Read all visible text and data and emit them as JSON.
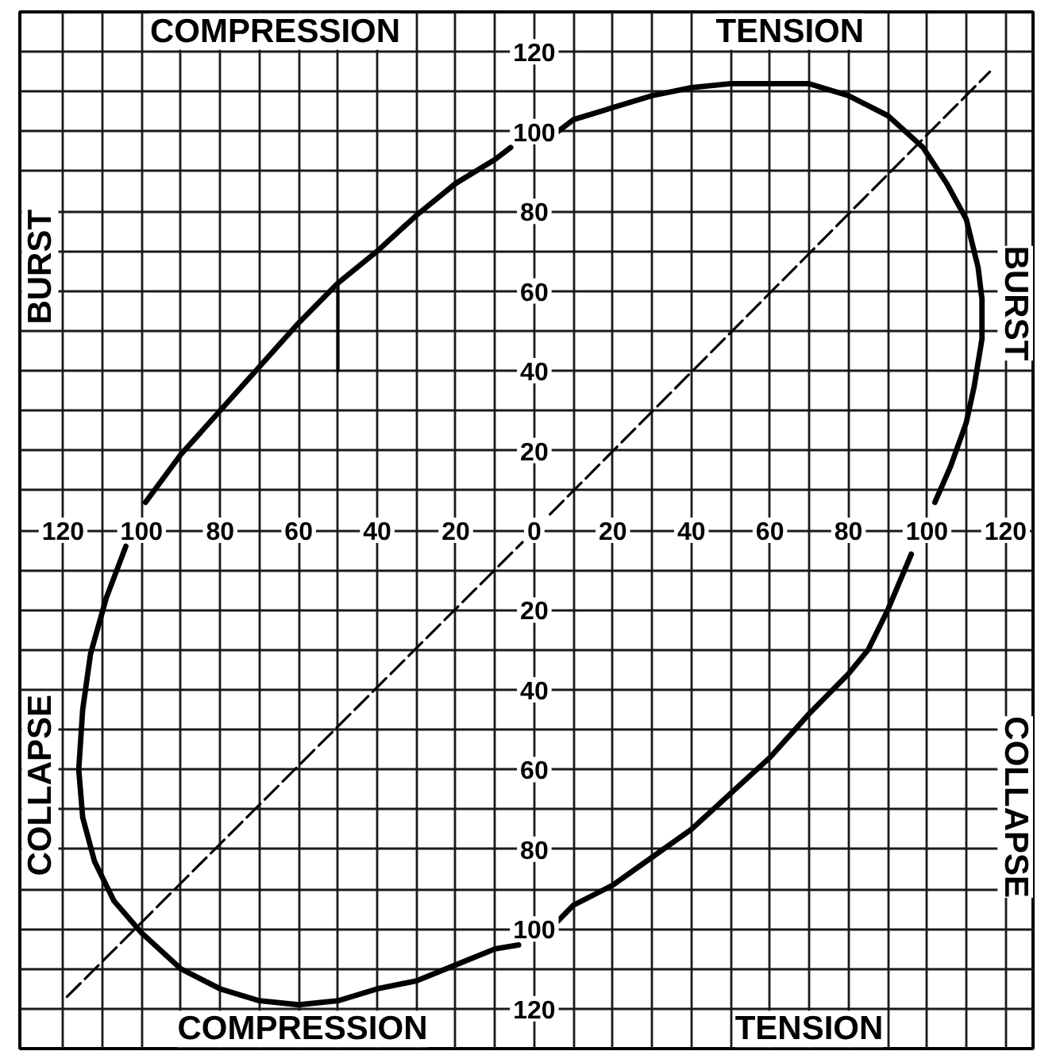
{
  "chart_data": {
    "type": "line",
    "xlim": [
      -131,
      127
    ],
    "ylim": [
      -130,
      130
    ],
    "grid": true,
    "xticks": [
      {
        "value": -120,
        "label": "120"
      },
      {
        "value": -110,
        "label": null
      },
      {
        "value": -100,
        "label": "100"
      },
      {
        "value": -90,
        "label": null
      },
      {
        "value": -80,
        "label": "80"
      },
      {
        "value": -70,
        "label": null
      },
      {
        "value": -60,
        "label": "60"
      },
      {
        "value": -50,
        "label": null
      },
      {
        "value": -40,
        "label": "40"
      },
      {
        "value": -30,
        "label": null
      },
      {
        "value": -20,
        "label": "20"
      },
      {
        "value": -10,
        "label": null
      },
      0,
      {
        "value": 10,
        "label": null
      },
      20,
      {
        "value": 30,
        "label": null
      },
      40,
      {
        "value": 50,
        "label": null
      },
      60,
      {
        "value": 70,
        "label": null
      },
      80,
      {
        "value": 90,
        "label": null
      },
      100,
      {
        "value": 110,
        "label": null
      },
      120
    ],
    "yticks": [
      {
        "value": -120,
        "label": "120"
      },
      {
        "value": -110,
        "label": null
      },
      {
        "value": -100,
        "label": "100"
      },
      {
        "value": -90,
        "label": null
      },
      {
        "value": -80,
        "label": "80"
      },
      {
        "value": -70,
        "label": null
      },
      {
        "value": -60,
        "label": "60"
      },
      {
        "value": -50,
        "label": null
      },
      {
        "value": -40,
        "label": "40"
      },
      {
        "value": -30,
        "label": null
      },
      {
        "value": -20,
        "label": "20"
      },
      {
        "value": -10,
        "label": null
      },
      {
        "value": 0,
        "label": null
      },
      {
        "value": 10,
        "label": null
      },
      20,
      {
        "value": 30,
        "label": null
      },
      40,
      {
        "value": 50,
        "label": null
      },
      60,
      {
        "value": 70,
        "label": null
      },
      80,
      {
        "value": 90,
        "label": null
      },
      100,
      {
        "value": 110,
        "label": null
      },
      120
    ],
    "annotations": [
      "COMPRESSION",
      "TENSION",
      "BURST",
      "BURST",
      "COLLAPSE",
      "COLLAPSE",
      "COMPRESSION",
      "TENSION"
    ],
    "series": [
      {
        "color": "#000000",
        "x": [
          6,
          10,
          20,
          30,
          40,
          50,
          60,
          70,
          80,
          90,
          99,
          105,
          110,
          113,
          114,
          114,
          112,
          110,
          106,
          102,
          100,
          96,
          90,
          85,
          80,
          70,
          60,
          50,
          40,
          30,
          20,
          10,
          6,
          1,
          -4,
          -10,
          -20,
          -30,
          -40,
          -50,
          -60,
          -70,
          -80,
          -90,
          -100,
          -107,
          -112,
          -115,
          -116,
          -115,
          -113,
          -109,
          -104,
          -101,
          -99,
          -90,
          -80,
          -70,
          -60,
          -50,
          -40,
          -30,
          -20,
          -10,
          -6
        ],
        "values": [
          100,
          103,
          106,
          109,
          111,
          112,
          112,
          112,
          109,
          104,
          96,
          87,
          78,
          66,
          58,
          48,
          36,
          27,
          16,
          7,
          null,
          -6,
          -20,
          -30,
          -36,
          -46,
          -57,
          -66,
          -75,
          -82,
          -89,
          -94,
          -98,
          null,
          -104,
          -105,
          -109,
          -113,
          -115,
          -118,
          -119,
          -118,
          -115,
          -110,
          -101,
          -93,
          -83,
          -72,
          -60,
          -45,
          -31,
          -17,
          -4,
          null,
          7,
          19,
          30,
          41,
          52,
          62,
          70,
          79,
          87,
          93,
          96
        ]
      },
      {
        "color": "#000000",
        "line_style": "dashed",
        "x": [
          -119,
          -3,
          0,
          4,
          116
        ],
        "values": [
          -117,
          -3,
          null,
          4,
          115
        ]
      },
      {
        "color": "#000000",
        "x": [
          -50,
          -50
        ],
        "values": [
          40,
          62
        ]
      }
    ]
  }
}
